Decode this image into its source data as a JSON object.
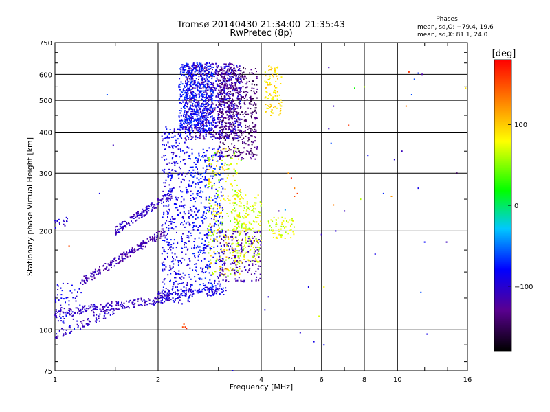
{
  "chart_data": {
    "type": "scatter",
    "title_line1": "Tromsø 20140430 21:34:00–21:35:43",
    "title_line2": "RwPretec (8p)",
    "xlabel": "Frequency [MHz]",
    "ylabel": "Stationary phase Virtual Height [km]",
    "x_scale": "log",
    "y_scale": "log",
    "xlim": [
      1,
      16
    ],
    "ylim": [
      75,
      750
    ],
    "x_ticks": [
      1,
      2,
      4,
      6,
      8,
      10,
      16
    ],
    "y_ticks": [
      75,
      100,
      200,
      300,
      400,
      500,
      600,
      750
    ],
    "grid": true,
    "stats": {
      "heading": "Phases",
      "line1": "mean, sd,O: −79.4, 19.6",
      "line2": "mean, sd,X:  81.1, 24.0"
    },
    "colorbar": {
      "label": "[deg]",
      "ticks": [
        "100",
        "0",
        "−100"
      ],
      "tick_values": [
        100,
        0,
        -100
      ],
      "range": [
        -180,
        180
      ],
      "colormap": [
        "#000000",
        "#5a0090",
        "#0000ff",
        "#00c8ff",
        "#00ff00",
        "#ffff00",
        "#ff8000",
        "#ff0000"
      ]
    },
    "series": [
      {
        "clusters": [
          {
            "f": [
              2.4,
              3.5
            ],
            "h": [
              380,
              650
            ],
            "phase": [
              -140,
              -80
            ],
            "n": 900
          },
          {
            "f": [
              2.3,
              2.9
            ],
            "h": [
              400,
              650
            ],
            "phase": [
              -95,
              -60
            ],
            "n": 500
          },
          {
            "f": [
              3.0,
              3.9
            ],
            "h": [
              330,
              630
            ],
            "phase": [
              -160,
              -120
            ],
            "n": 450
          },
          {
            "f": [
              2.05,
              2.5
            ],
            "h": [
              120,
              420
            ],
            "phase": [
              -110,
              -70
            ],
            "n": 450
          },
          {
            "f": [
              2.5,
              3.1
            ],
            "h": [
              130,
              360
            ],
            "phase": [
              -100,
              -60
            ],
            "n": 400
          },
          {
            "f": [
              3.0,
              4.0
            ],
            "h": [
              140,
              200
            ],
            "phase": [
              -130,
              -100
            ],
            "n": 200
          },
          {
            "f": [
              2.8,
              3.5
            ],
            "h": [
              145,
              360
            ],
            "phase": [
              40,
              110
            ],
            "n": 250
          },
          {
            "f": [
              3.3,
              4.0
            ],
            "h": [
              160,
              260
            ],
            "phase": [
              50,
              95
            ],
            "n": 200
          },
          {
            "f": [
              4.1,
              4.6
            ],
            "h": [
              450,
              640
            ],
            "phase": [
              70,
              110
            ],
            "n": 100
          },
          {
            "f": [
              4.2,
              5.0
            ],
            "h": [
              190,
              220
            ],
            "phase": [
              50,
              90
            ],
            "n": 60
          },
          {
            "f": [
              1.0,
              1.2
            ],
            "h": [
              100,
              140
            ],
            "phase": [
              -110,
              -70
            ],
            "n": 60
          }
        ],
        "traces": [
          {
            "f": [
              1.0,
              2.2
            ],
            "h": [
              112,
              125
            ],
            "phase": [
              -120,
              -90
            ],
            "n": 220
          },
          {
            "f": [
              1.2,
              2.1
            ],
            "h": [
              140,
              200
            ],
            "phase": [
              -130,
              -100
            ],
            "n": 200
          },
          {
            "f": [
              1.5,
              2.2
            ],
            "h": [
              200,
              260
            ],
            "phase": [
              -120,
              -90
            ],
            "n": 150
          },
          {
            "f": [
              1.0,
              1.5
            ],
            "h": [
              95,
              115
            ],
            "phase": [
              -120,
              -90
            ],
            "n": 70
          },
          {
            "f": [
              1.0,
              1.1
            ],
            "h": [
              210,
              215
            ],
            "phase": [
              -110,
              -90
            ],
            "n": 15
          },
          {
            "f": [
              2.0,
              3.2
            ],
            "h": [
              128,
              132
            ],
            "phase": [
              -110,
              -80
            ],
            "n": 100
          }
        ],
        "scattered": [
          [
            1.42,
            520,
            -60
          ],
          [
            1.35,
            260,
            -90
          ],
          [
            1.48,
            365,
            -110
          ],
          [
            1.1,
            180,
            150
          ],
          [
            2.4,
            102,
            160
          ],
          [
            2.42,
            101,
            170
          ],
          [
            2.38,
            104,
            150
          ],
          [
            2.36,
            102,
            150
          ],
          [
            5.5,
            135,
            -90
          ],
          [
            5.2,
            98,
            -100
          ],
          [
            5.7,
            92,
            -90
          ],
          [
            6.1,
            90,
            -80
          ],
          [
            6.3,
            630,
            -110
          ],
          [
            6.0,
            195,
            -110
          ],
          [
            6.6,
            200,
            -100
          ],
          [
            6.5,
            240,
            130
          ],
          [
            7.0,
            230,
            -110
          ],
          [
            7.5,
            545,
            20
          ],
          [
            7.2,
            420,
            160
          ],
          [
            8.0,
            550,
            60
          ],
          [
            8.2,
            340,
            -80
          ],
          [
            8.6,
            170,
            -90
          ],
          [
            9.1,
            260,
            -70
          ],
          [
            9.8,
            330,
            -100
          ],
          [
            10.3,
            350,
            -110
          ],
          [
            10.8,
            610,
            160
          ],
          [
            11.2,
            580,
            -60
          ],
          [
            11.8,
            600,
            -120
          ],
          [
            11.0,
            520,
            -60
          ],
          [
            11.5,
            270,
            -90
          ],
          [
            12.0,
            185,
            -80
          ],
          [
            12.2,
            97,
            -90
          ],
          [
            11.7,
            130,
            -60
          ],
          [
            14.9,
            300,
            -150
          ],
          [
            15.8,
            545,
            90
          ],
          [
            13.9,
            185,
            -110
          ],
          [
            6.3,
            410,
            -110
          ],
          [
            6.5,
            480,
            -110
          ],
          [
            6.4,
            370,
            -60
          ],
          [
            5.9,
            110,
            70
          ],
          [
            5.1,
            260,
            160
          ],
          [
            4.9,
            290,
            170
          ],
          [
            5.0,
            270,
            130
          ],
          [
            4.8,
            300,
            120
          ],
          [
            4.6,
            210,
            90
          ],
          [
            4.5,
            230,
            -120
          ],
          [
            3.3,
            75,
            -90
          ],
          [
            4.1,
            115,
            -90
          ],
          [
            4.2,
            126,
            -100
          ],
          [
            4.7,
            232,
            -40
          ],
          [
            6.1,
            135,
            80
          ],
          [
            5.0,
            255,
            150
          ],
          [
            11.5,
            605,
            -70
          ],
          [
            10.6,
            480,
            130
          ],
          [
            7.8,
            250,
            60
          ],
          [
            9.6,
            255,
            120
          ]
        ]
      }
    ]
  }
}
